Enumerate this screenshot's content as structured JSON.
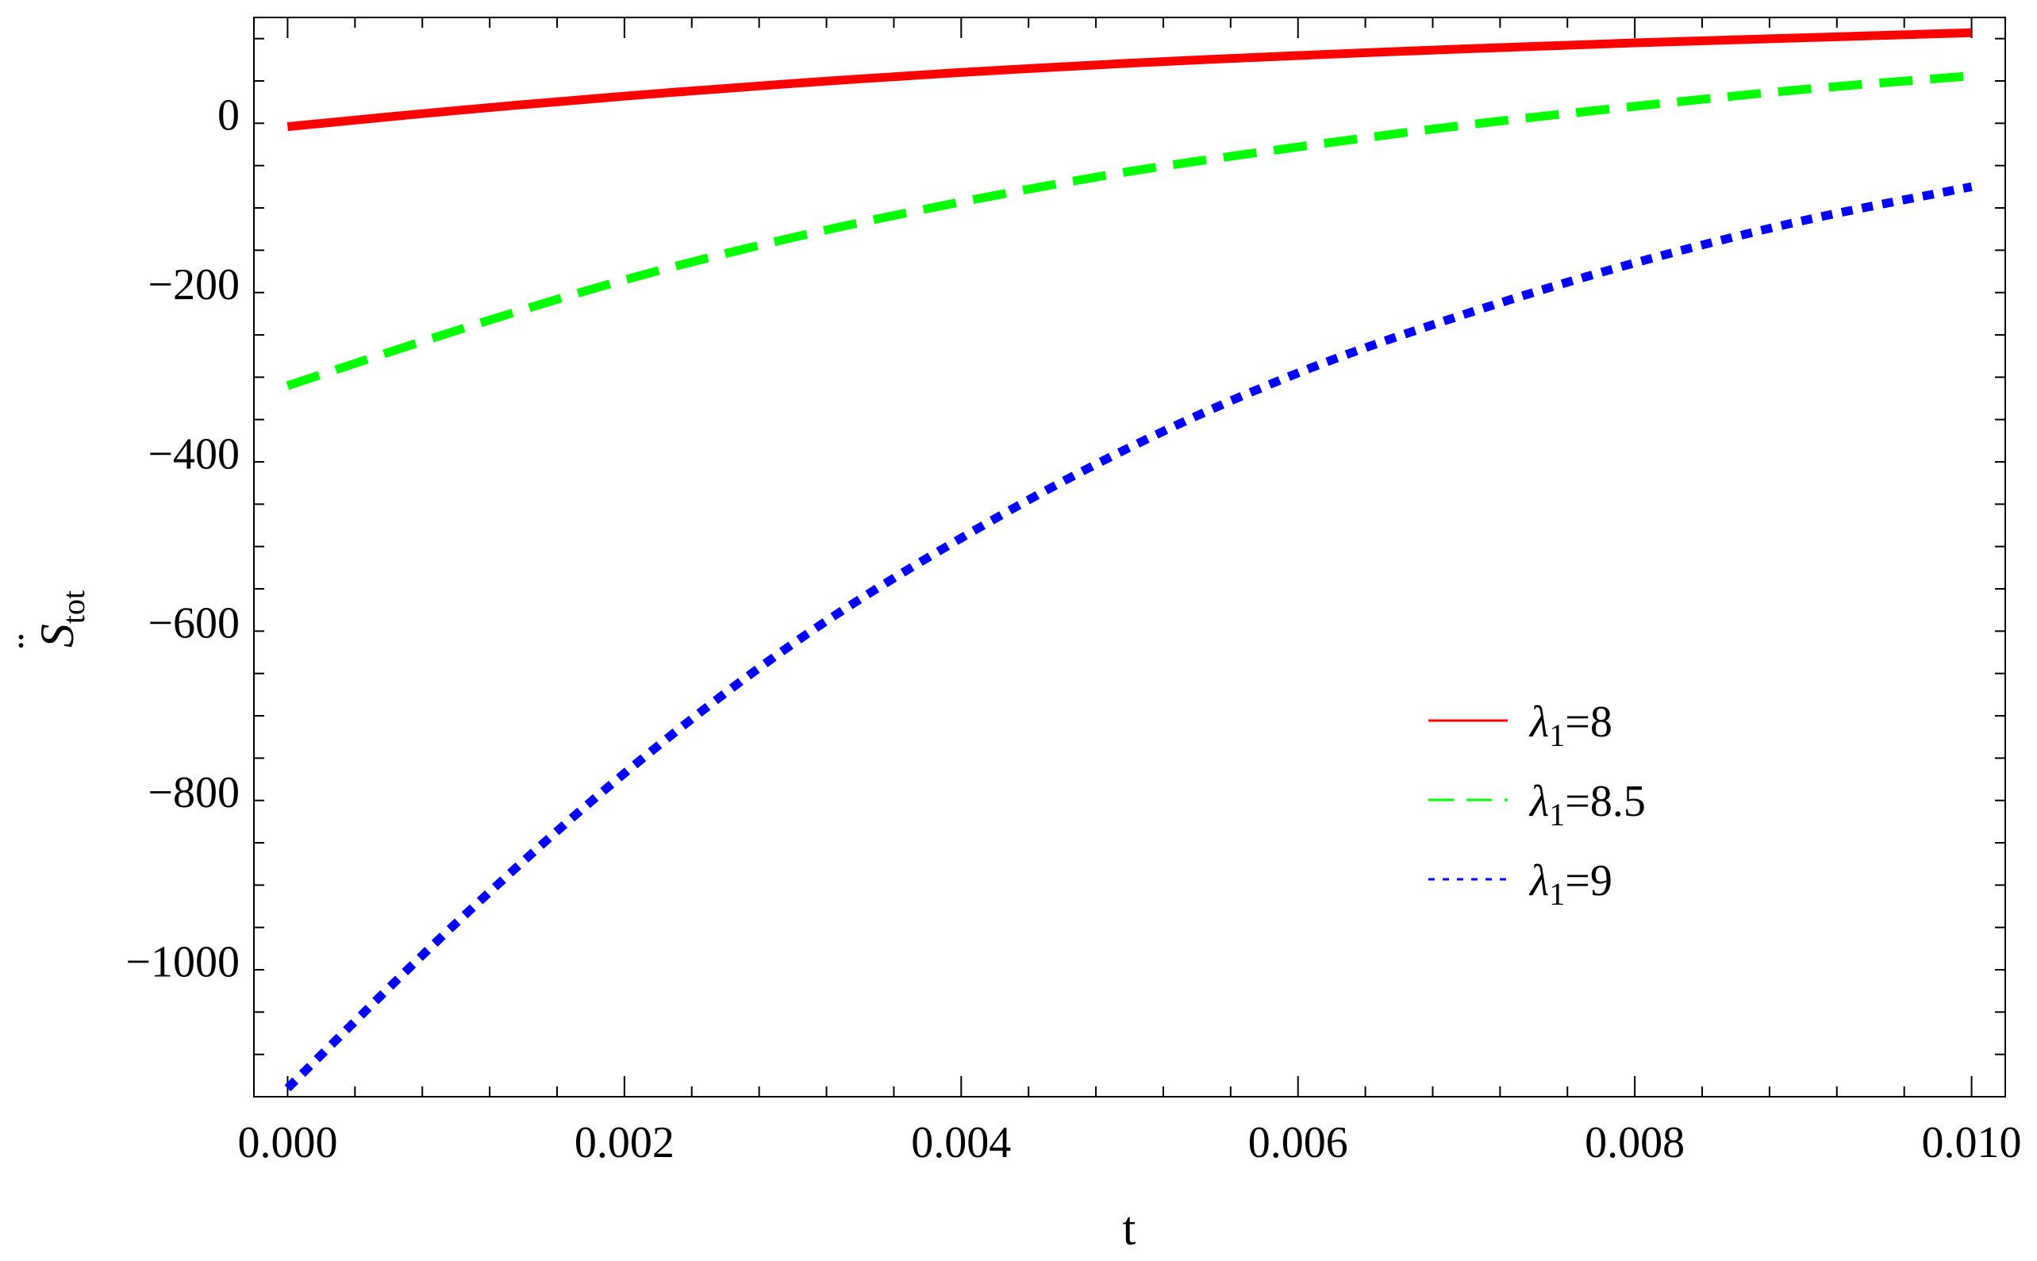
{
  "chart_data": {
    "type": "line",
    "xlabel": "t",
    "ylabel": {
      "base": "S",
      "accent": "¨",
      "subscript": "tot"
    },
    "xlim": [
      -0.0002,
      0.0102
    ],
    "ylim": [
      -1160,
      115
    ],
    "x_ticks": [
      {
        "value": 0.0,
        "label": "0.000"
      },
      {
        "value": 0.002,
        "label": "0.002"
      },
      {
        "value": 0.004,
        "label": "0.004"
      },
      {
        "value": 0.006,
        "label": "0.006"
      },
      {
        "value": 0.008,
        "label": "0.008"
      },
      {
        "value": 0.01,
        "label": "0.010"
      }
    ],
    "y_ticks": [
      {
        "value": 0,
        "label": "0"
      },
      {
        "value": -200,
        "label": "−200"
      },
      {
        "value": -400,
        "label": "−400"
      },
      {
        "value": -600,
        "label": "−600"
      },
      {
        "value": -800,
        "label": "−800"
      },
      {
        "value": -1000,
        "label": "−1000"
      }
    ],
    "grid": false,
    "legend_position": "right",
    "x": [
      0.0,
      0.001,
      0.002,
      0.003,
      0.004,
      0.005,
      0.006,
      0.007,
      0.008,
      0.009,
      0.01
    ],
    "series": [
      {
        "name": "λ₁=8",
        "legend": {
          "symbol": "λ",
          "sub": "1",
          "rest": "=8"
        },
        "color": "#ff0000",
        "style": "solid",
        "values": [
          -14,
          5,
          22,
          37,
          50,
          61,
          70,
          78,
          85,
          91,
          97
        ]
      },
      {
        "name": "λ₁=8.5",
        "legend": {
          "symbol": "λ",
          "sub": "1",
          "rest": "=8.5"
        },
        "color": "#00ff00",
        "style": "dashed",
        "values": [
          -320,
          -255,
          -195,
          -145,
          -103,
          -67,
          -38,
          -12,
          10,
          30,
          46
        ]
      },
      {
        "name": "λ₁=9",
        "legend": {
          "symbol": "λ",
          "sub": "1",
          "rest": "=9"
        },
        "color": "#0000ff",
        "style": "dotted",
        "values": [
          -1150,
          -955,
          -778,
          -625,
          -500,
          -393,
          -305,
          -235,
          -175,
          -125,
          -85
        ]
      }
    ]
  }
}
